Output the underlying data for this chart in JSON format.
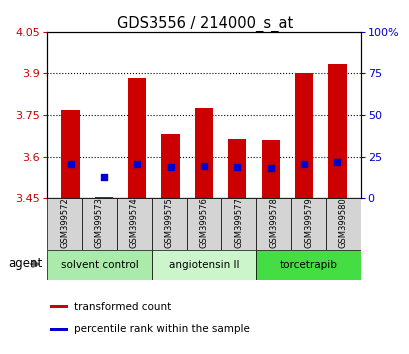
{
  "title": "GDS3556 / 214000_s_at",
  "samples": [
    "GSM399572",
    "GSM399573",
    "GSM399574",
    "GSM399575",
    "GSM399576",
    "GSM399577",
    "GSM399578",
    "GSM399579",
    "GSM399580"
  ],
  "transformed_count": [
    3.77,
    3.455,
    3.885,
    3.68,
    3.775,
    3.665,
    3.66,
    3.9,
    3.935
  ],
  "percentile_rank_value": [
    3.572,
    3.525,
    3.575,
    3.562,
    3.566,
    3.563,
    3.56,
    3.573,
    3.58
  ],
  "ylim_left": [
    3.45,
    4.05
  ],
  "ylim_right": [
    0,
    100
  ],
  "yticks_left": [
    3.45,
    3.6,
    3.75,
    3.9,
    4.05
  ],
  "yticks_right": [
    0,
    25,
    50,
    75,
    100
  ],
  "ytick_labels_left": [
    "3.45",
    "3.6",
    "3.75",
    "3.9",
    "4.05"
  ],
  "ytick_labels_right": [
    "0",
    "25",
    "50",
    "75",
    "100%"
  ],
  "groups": [
    {
      "label": "solvent control",
      "indices": [
        0,
        1,
        2
      ],
      "color": "#aaeaaa"
    },
    {
      "label": "angiotensin II",
      "indices": [
        3,
        4,
        5
      ],
      "color": "#ccf5cc"
    },
    {
      "label": "torcetrapib",
      "indices": [
        6,
        7,
        8
      ],
      "color": "#44dd44"
    }
  ],
  "bar_color": "#cc0000",
  "dot_color": "#0000cc",
  "bar_width": 0.55,
  "left_color": "#cc0000",
  "right_color": "#0000cc",
  "legend_items": [
    "transformed count",
    "percentile rank within the sample"
  ],
  "agent_label": "agent"
}
